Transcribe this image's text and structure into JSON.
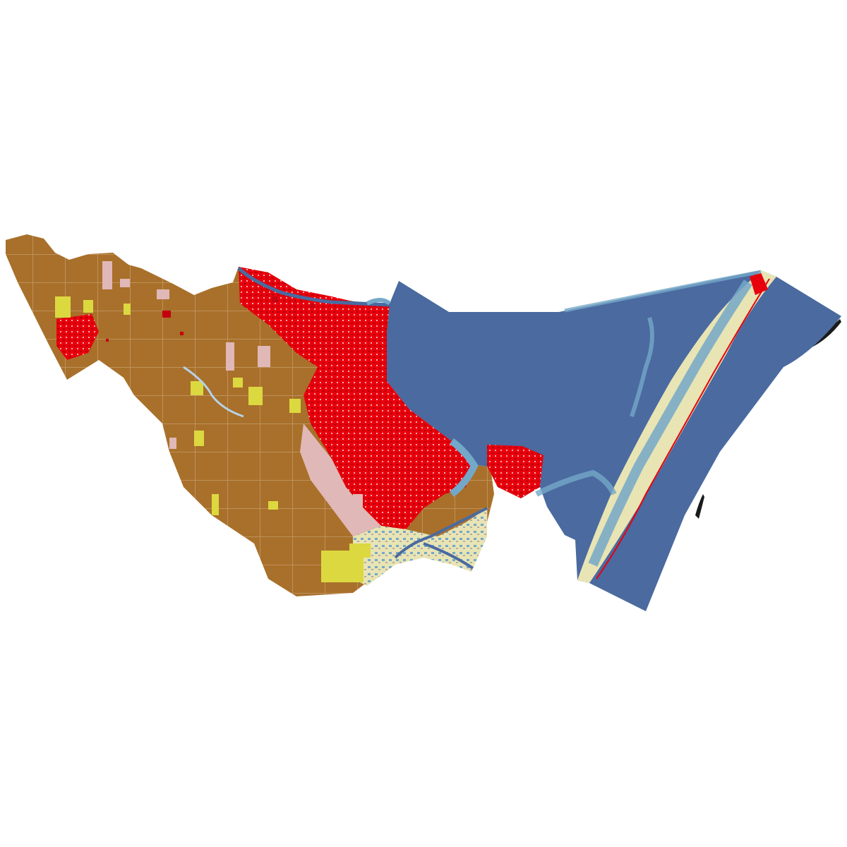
{
  "map": {
    "type": "land-cover-raster",
    "background_color": "#ffffff",
    "legend_shown": false,
    "labels_shown": false,
    "classes": [
      {
        "key": "water",
        "color": "#4a6aa0"
      },
      {
        "key": "cultivated-crops",
        "color": "#a8702a"
      },
      {
        "key": "developed-high",
        "color": "#e8000c"
      },
      {
        "key": "developed-medium",
        "color": "#c40010"
      },
      {
        "key": "developed-open",
        "color": "#e0b8b8"
      },
      {
        "key": "hay-pasture",
        "color": "#dcd840"
      },
      {
        "key": "emergent-wetland",
        "color": "#74a8c8"
      },
      {
        "key": "woody-wetland",
        "color": "#b6d2e6"
      },
      {
        "key": "barren",
        "color": "#b4aca4"
      },
      {
        "key": "grassland",
        "color": "#e8e4b4"
      },
      {
        "key": "shrub",
        "color": "#cdc08a"
      },
      {
        "key": "forest",
        "color": "#7fa860"
      }
    ]
  }
}
